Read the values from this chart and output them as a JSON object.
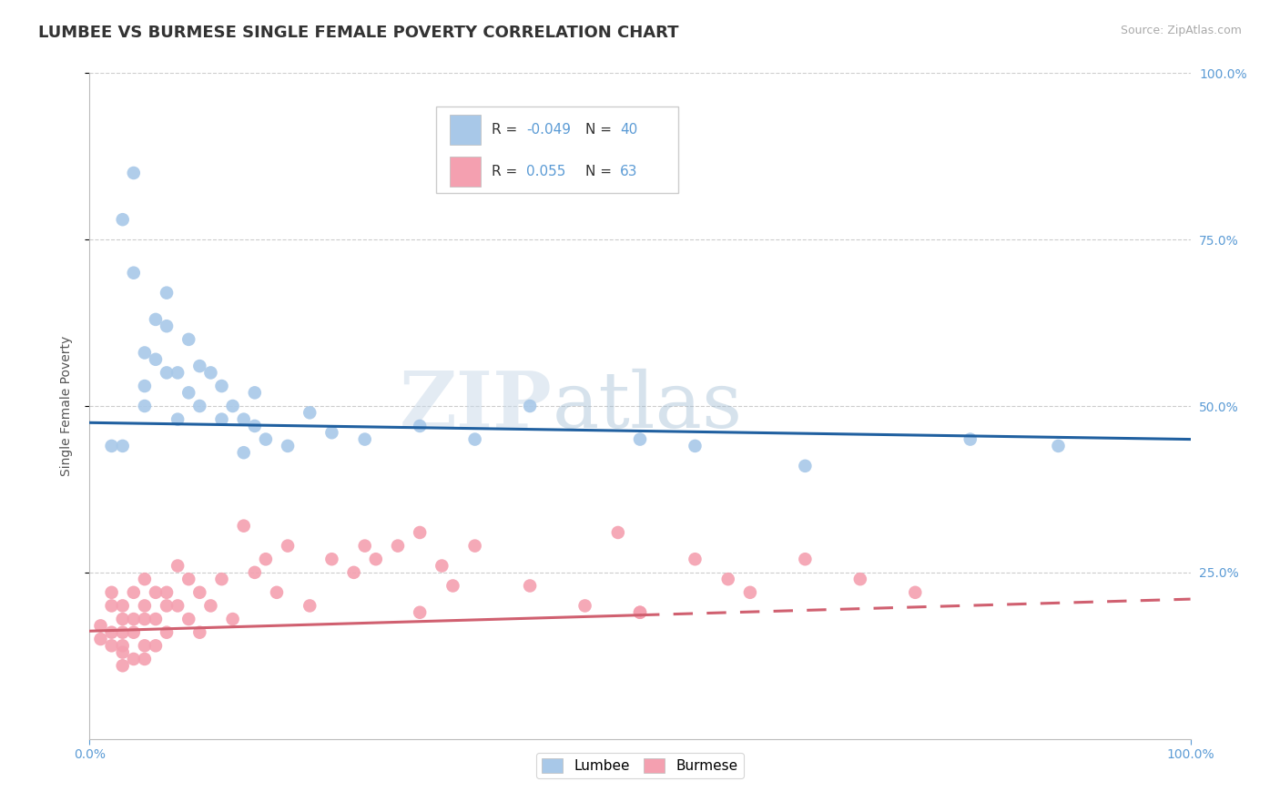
{
  "title": "LUMBEE VS BURMESE SINGLE FEMALE POVERTY CORRELATION CHART",
  "source_text": "Source: ZipAtlas.com",
  "ylabel": "Single Female Poverty",
  "xlim": [
    0.0,
    1.0
  ],
  "ylim": [
    0.0,
    1.0
  ],
  "ytick_positions": [
    0.25,
    0.5,
    0.75,
    1.0
  ],
  "lumbee_R": "-0.049",
  "lumbee_N": "40",
  "burmese_R": "0.055",
  "burmese_N": "63",
  "lumbee_color": "#a8c8e8",
  "burmese_color": "#f4a0b0",
  "lumbee_line_color": "#2060a0",
  "burmese_line_color": "#d06070",
  "title_fontsize": 13,
  "axis_label_fontsize": 10,
  "tick_fontsize": 10,
  "watermark_text": "ZIPatlas",
  "lumbee_scatter_x": [
    0.02,
    0.04,
    0.03,
    0.04,
    0.05,
    0.05,
    0.05,
    0.06,
    0.06,
    0.07,
    0.07,
    0.07,
    0.08,
    0.08,
    0.09,
    0.09,
    0.1,
    0.1,
    0.11,
    0.12,
    0.12,
    0.13,
    0.14,
    0.14,
    0.15,
    0.15,
    0.16,
    0.18,
    0.2,
    0.22,
    0.25,
    0.3,
    0.35,
    0.4,
    0.5,
    0.55,
    0.65,
    0.8,
    0.88,
    0.03
  ],
  "lumbee_scatter_y": [
    0.44,
    0.85,
    0.78,
    0.7,
    0.58,
    0.53,
    0.5,
    0.63,
    0.57,
    0.67,
    0.62,
    0.55,
    0.55,
    0.48,
    0.6,
    0.52,
    0.56,
    0.5,
    0.55,
    0.53,
    0.48,
    0.5,
    0.48,
    0.43,
    0.52,
    0.47,
    0.45,
    0.44,
    0.49,
    0.46,
    0.45,
    0.47,
    0.45,
    0.5,
    0.45,
    0.44,
    0.41,
    0.45,
    0.44,
    0.44
  ],
  "lumbee_line_x": [
    0.0,
    1.0
  ],
  "lumbee_line_y": [
    0.475,
    0.45
  ],
  "burmese_scatter_x": [
    0.01,
    0.01,
    0.02,
    0.02,
    0.02,
    0.02,
    0.03,
    0.03,
    0.03,
    0.03,
    0.03,
    0.03,
    0.04,
    0.04,
    0.04,
    0.04,
    0.05,
    0.05,
    0.05,
    0.05,
    0.05,
    0.06,
    0.06,
    0.06,
    0.07,
    0.07,
    0.07,
    0.08,
    0.08,
    0.09,
    0.09,
    0.1,
    0.1,
    0.11,
    0.12,
    0.13,
    0.14,
    0.15,
    0.16,
    0.17,
    0.18,
    0.2,
    0.22,
    0.24,
    0.25,
    0.26,
    0.28,
    0.3,
    0.3,
    0.32,
    0.33,
    0.35,
    0.4,
    0.45,
    0.48,
    0.5,
    0.5,
    0.55,
    0.58,
    0.6,
    0.65,
    0.7,
    0.75
  ],
  "burmese_scatter_y": [
    0.17,
    0.15,
    0.2,
    0.22,
    0.16,
    0.14,
    0.2,
    0.18,
    0.16,
    0.14,
    0.13,
    0.11,
    0.22,
    0.18,
    0.16,
    0.12,
    0.24,
    0.2,
    0.18,
    0.14,
    0.12,
    0.22,
    0.18,
    0.14,
    0.22,
    0.2,
    0.16,
    0.26,
    0.2,
    0.24,
    0.18,
    0.22,
    0.16,
    0.2,
    0.24,
    0.18,
    0.32,
    0.25,
    0.27,
    0.22,
    0.29,
    0.2,
    0.27,
    0.25,
    0.29,
    0.27,
    0.29,
    0.31,
    0.19,
    0.26,
    0.23,
    0.29,
    0.23,
    0.2,
    0.31,
    0.19,
    0.19,
    0.27,
    0.24,
    0.22,
    0.27,
    0.24,
    0.22
  ],
  "burmese_line_x": [
    0.0,
    1.0
  ],
  "burmese_line_y": [
    0.162,
    0.21
  ],
  "burmese_line_dashed_start": 0.5,
  "background_color": "#ffffff",
  "grid_color": "#cccccc",
  "tick_color": "#5b9bd5"
}
